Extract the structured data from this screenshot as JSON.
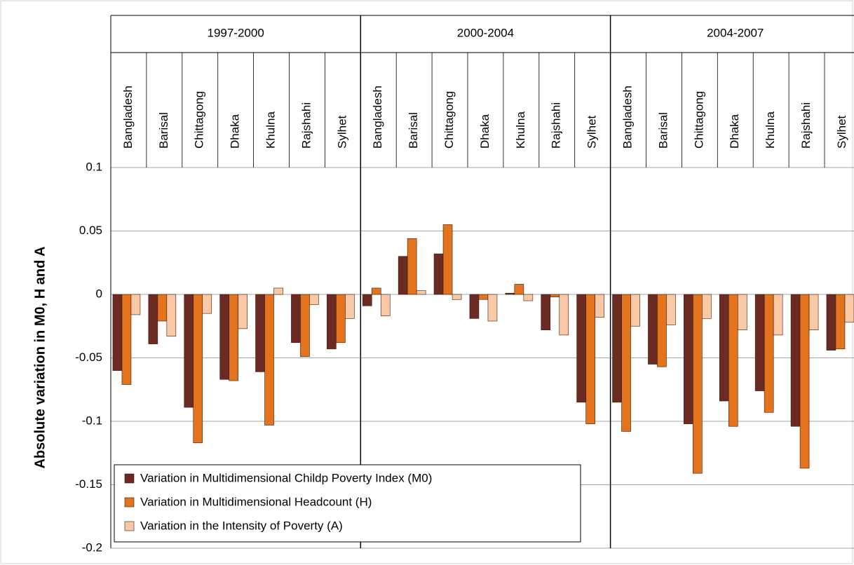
{
  "chart_data": {
    "type": "bar",
    "y_label": "Absolute variation in M0, H and A",
    "category_groups": [
      "1997-2000",
      "2000-2004",
      "2004-2007"
    ],
    "categories": [
      "Bangladesh",
      "Barisal",
      "Chittagong",
      "Dhaka",
      "Khulna",
      "Rajshahi",
      "Sylhet",
      "Bangladesh",
      "Barisal",
      "Chittagong",
      "Dhaka",
      "Khulna",
      "Rajshahi",
      "Sylhet",
      "Bangladesh",
      "Barisal",
      "Chittagong",
      "Dhaka",
      "Khulna",
      "Rajshahi",
      "Sylhet"
    ],
    "series": [
      {
        "name": "Variation in Multidimensional Childp Poverty Index (M0)",
        "color": "#6b2a22",
        "values": [
          -0.06,
          -0.039,
          -0.089,
          -0.067,
          -0.061,
          -0.038,
          -0.043,
          -0.009,
          0.03,
          0.032,
          -0.019,
          0.001,
          -0.028,
          -0.085,
          -0.085,
          -0.055,
          -0.102,
          -0.084,
          -0.076,
          -0.104,
          -0.044
        ]
      },
      {
        "name": "Variation in Multidimensional Headcount (H)",
        "color": "#e3731c",
        "values": [
          -0.071,
          -0.021,
          -0.117,
          -0.068,
          -0.103,
          -0.049,
          -0.038,
          0.005,
          0.044,
          0.055,
          -0.004,
          0.008,
          -0.002,
          -0.102,
          -0.108,
          -0.057,
          -0.141,
          -0.104,
          -0.093,
          -0.137,
          -0.043
        ]
      },
      {
        "name": "Variation in the Intensity of Poverty (A)",
        "color": "#f9c9a5",
        "values": [
          -0.016,
          -0.033,
          -0.015,
          -0.027,
          0.005,
          -0.008,
          -0.019,
          -0.017,
          0.003,
          -0.004,
          -0.021,
          -0.005,
          -0.032,
          -0.018,
          -0.025,
          -0.024,
          -0.019,
          -0.028,
          -0.032,
          -0.028,
          -0.022
        ]
      }
    ],
    "ylim": [
      -0.2,
      0.1
    ],
    "yticks": [
      0.1,
      0.05,
      0,
      -0.05,
      -0.1,
      -0.15,
      -0.2
    ],
    "grid": true,
    "legend": "bottom-left"
  }
}
